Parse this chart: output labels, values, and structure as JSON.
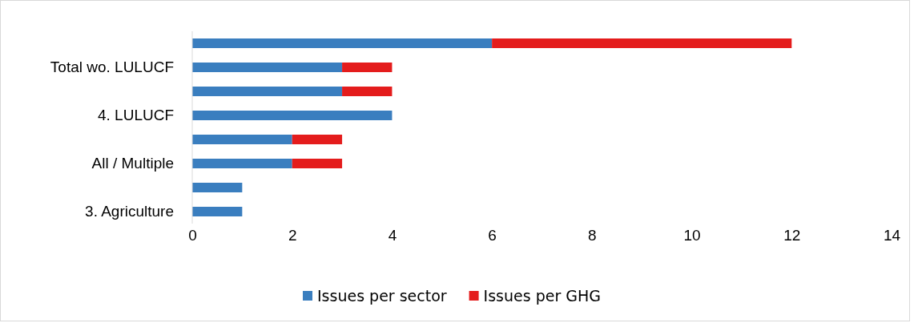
{
  "chart_data": {
    "type": "bar",
    "orientation": "horizontal",
    "stacked": true,
    "categories": [
      null,
      "Total wo. LULUCF",
      null,
      "4. LULUCF",
      null,
      "All / Multiple",
      null,
      "3. Agriculture"
    ],
    "series": [
      {
        "name": "Issues per sector",
        "color": "#3a7ebf",
        "values": [
          6,
          3,
          3,
          4,
          2,
          2,
          1,
          1
        ]
      },
      {
        "name": "Issues per GHG",
        "color": "#e41c1c",
        "values": [
          6,
          1,
          1,
          0,
          1,
          1,
          0,
          0
        ]
      }
    ],
    "xlim": [
      0,
      14
    ],
    "xticks": [
      0,
      2,
      4,
      6,
      8,
      10,
      12,
      14
    ],
    "grid": false,
    "legend": "bottom"
  }
}
